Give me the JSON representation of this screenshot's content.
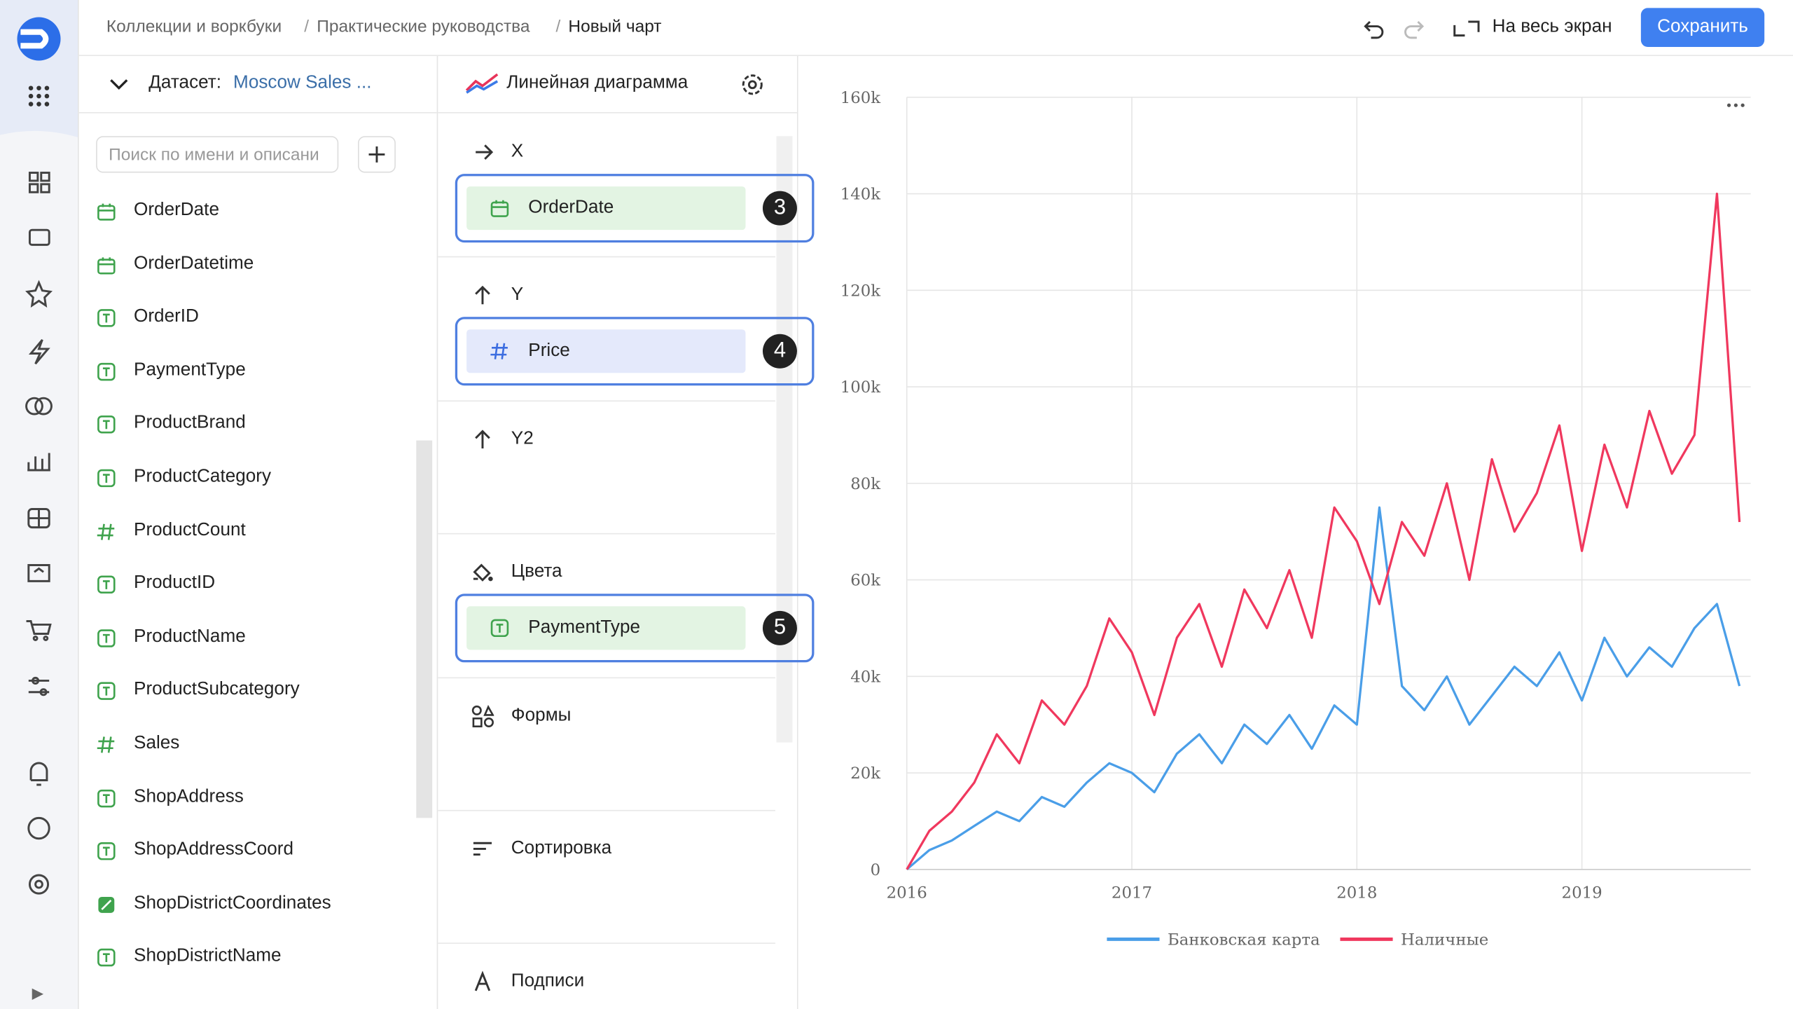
{
  "breadcrumbs": [
    "Коллекции и воркбуки",
    "Практические руководства",
    "Новый чарт"
  ],
  "toolbar": {
    "fullscreen": "На весь экран",
    "save": "Сохранить"
  },
  "dataset": {
    "label": "Датасет:",
    "name": "Moscow Sales ...",
    "search_placeholder": "Поиск по имени и описани"
  },
  "fields": [
    {
      "name": "OrderDate",
      "type": "date"
    },
    {
      "name": "OrderDatetime",
      "type": "date"
    },
    {
      "name": "OrderID",
      "type": "text"
    },
    {
      "name": "PaymentType",
      "type": "text"
    },
    {
      "name": "ProductBrand",
      "type": "text"
    },
    {
      "name": "ProductCategory",
      "type": "text"
    },
    {
      "name": "ProductCount",
      "type": "number"
    },
    {
      "name": "ProductID",
      "type": "text"
    },
    {
      "name": "ProductName",
      "type": "text"
    },
    {
      "name": "ProductSubcategory",
      "type": "text"
    },
    {
      "name": "Sales",
      "type": "number"
    },
    {
      "name": "ShopAddress",
      "type": "text"
    },
    {
      "name": "ShopAddressCoord",
      "type": "text"
    },
    {
      "name": "ShopDistrictCoordinates",
      "type": "geo"
    },
    {
      "name": "ShopDistrictName",
      "type": "text"
    }
  ],
  "visualization": "Линейная диаграмма",
  "sections": [
    {
      "label": "X",
      "field": {
        "name": "OrderDate",
        "type": "date",
        "badge": 3
      }
    },
    {
      "label": "Y",
      "field": {
        "name": "Price",
        "type": "number",
        "badge": 4
      }
    },
    {
      "label": "Y2"
    },
    {
      "label": "Цвета",
      "field": {
        "name": "PaymentType",
        "type": "text",
        "badge": 5
      }
    },
    {
      "label": "Формы"
    },
    {
      "label": "Сортировка"
    },
    {
      "label": "Подписи"
    }
  ],
  "chart_data": {
    "type": "line",
    "x": [
      2016.0,
      2016.1,
      2016.2,
      2016.3,
      2016.4,
      2016.5,
      2016.6,
      2016.7,
      2016.8,
      2016.9,
      2017.0,
      2017.1,
      2017.2,
      2017.3,
      2017.4,
      2017.5,
      2017.6,
      2017.7,
      2017.8,
      2017.9,
      2018.0,
      2018.1,
      2018.2,
      2018.3,
      2018.4,
      2018.5,
      2018.6,
      2018.7,
      2018.8,
      2018.9,
      2019.0,
      2019.1,
      2019.2,
      2019.3,
      2019.4,
      2019.5,
      2019.6,
      2019.7
    ],
    "series": [
      {
        "name": "Банковская карта",
        "color": "#4a9ee8",
        "values": [
          0,
          4000,
          6000,
          9000,
          12000,
          10000,
          15000,
          13000,
          18000,
          22000,
          20000,
          16000,
          24000,
          28000,
          22000,
          30000,
          26000,
          32000,
          25000,
          34000,
          30000,
          75000,
          38000,
          33000,
          40000,
          30000,
          36000,
          42000,
          38000,
          45000,
          35000,
          48000,
          40000,
          46000,
          42000,
          50000,
          55000,
          38000
        ]
      },
      {
        "name": "Наличные",
        "color": "#f0385e",
        "values": [
          0,
          8000,
          12000,
          18000,
          28000,
          22000,
          35000,
          30000,
          38000,
          52000,
          45000,
          32000,
          48000,
          55000,
          42000,
          58000,
          50000,
          62000,
          48000,
          75000,
          68000,
          55000,
          72000,
          65000,
          80000,
          60000,
          85000,
          70000,
          78000,
          92000,
          66000,
          88000,
          75000,
          95000,
          82000,
          90000,
          140000,
          72000
        ]
      }
    ],
    "xlim": [
      2016,
      2019.75
    ],
    "xticks": [
      2016,
      2017,
      2018,
      2019
    ],
    "ylim": [
      0,
      160000
    ],
    "yticks": [
      0,
      {
        "value": 20000,
        "label": "20k"
      },
      {
        "value": 40000,
        "label": "40k"
      },
      {
        "value": 60000,
        "label": "60k"
      },
      {
        "value": 80000,
        "label": "80k"
      },
      {
        "value": 100000,
        "label": "100k"
      },
      {
        "value": 120000,
        "label": "120k"
      },
      {
        "value": 140000,
        "label": "140k"
      },
      {
        "value": 160000,
        "label": "160k"
      }
    ],
    "grid": true
  }
}
